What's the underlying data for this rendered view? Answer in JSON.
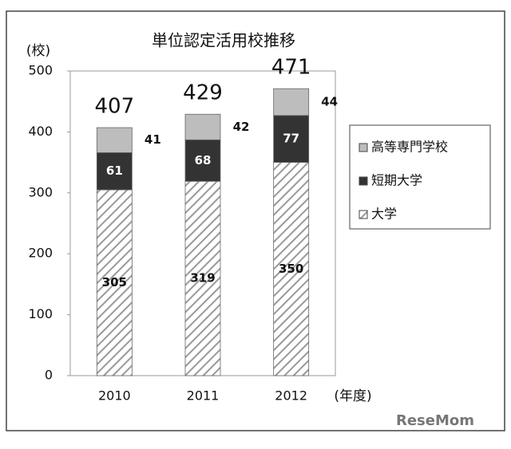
{
  "chart_data": {
    "type": "stacked_bar",
    "title": "単位認定活用校推移",
    "y_label": "(校)",
    "x_label": "(年度)",
    "categories": [
      "2010",
      "2011",
      "2012"
    ],
    "series": [
      {
        "name": "大学",
        "color": "#ffffff",
        "values": [
          305,
          319,
          350
        ]
      },
      {
        "name": "短期大学",
        "color": "#333333",
        "values": [
          61,
          68,
          77
        ]
      },
      {
        "name": "高等専門学校",
        "color": "#bdbdbd",
        "values": [
          41,
          42,
          44
        ]
      }
    ],
    "totals": [
      407,
      429,
      471
    ],
    "ylim": [
      0,
      500
    ],
    "yticks": [
      0,
      100,
      200,
      300,
      400,
      500
    ],
    "grid": false,
    "legend": "right",
    "watermark": "ReseMom"
  }
}
